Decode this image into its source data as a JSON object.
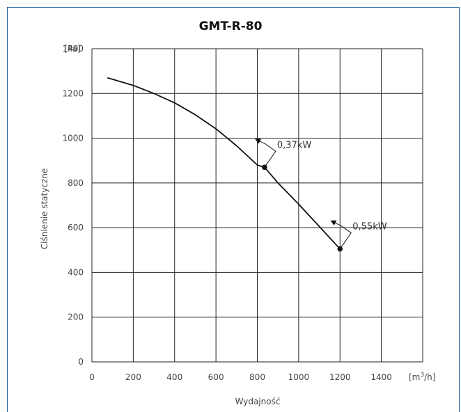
{
  "chart_data": {
    "type": "line",
    "title": "GMT-R-80",
    "xlabel": "Wydajność",
    "ylabel": "Ciśnienie statyczne",
    "x_unit_prefix": "[m",
    "x_unit_sup": "3",
    "x_unit_suffix": "/h]",
    "y_unit": "[Pa]",
    "xlim": [
      0,
      1600
    ],
    "ylim": [
      0,
      1400
    ],
    "x_ticks": [
      "0",
      "200",
      "400",
      "600",
      "800",
      "1000",
      "1200",
      "1400"
    ],
    "y_ticks": [
      "0",
      "200",
      "400",
      "600",
      "800",
      "1000",
      "1200",
      "1400"
    ],
    "grid": true,
    "series": [
      {
        "x": [
          75,
          200,
          300,
          400,
          500,
          600,
          700,
          800,
          835,
          900,
          1000,
          1100,
          1200
        ],
        "y": [
          1270,
          1236,
          1200,
          1158,
          1105,
          1042,
          966,
          880,
          870,
          800,
          705,
          605,
          505
        ]
      }
    ],
    "points": [
      {
        "x": 835,
        "y": 870
      },
      {
        "x": 1200,
        "y": 505
      }
    ],
    "annotations": [
      {
        "label": "0,37kW",
        "x": 835,
        "y": 870
      },
      {
        "label": "0,55kW",
        "x": 1200,
        "y": 505
      }
    ]
  }
}
